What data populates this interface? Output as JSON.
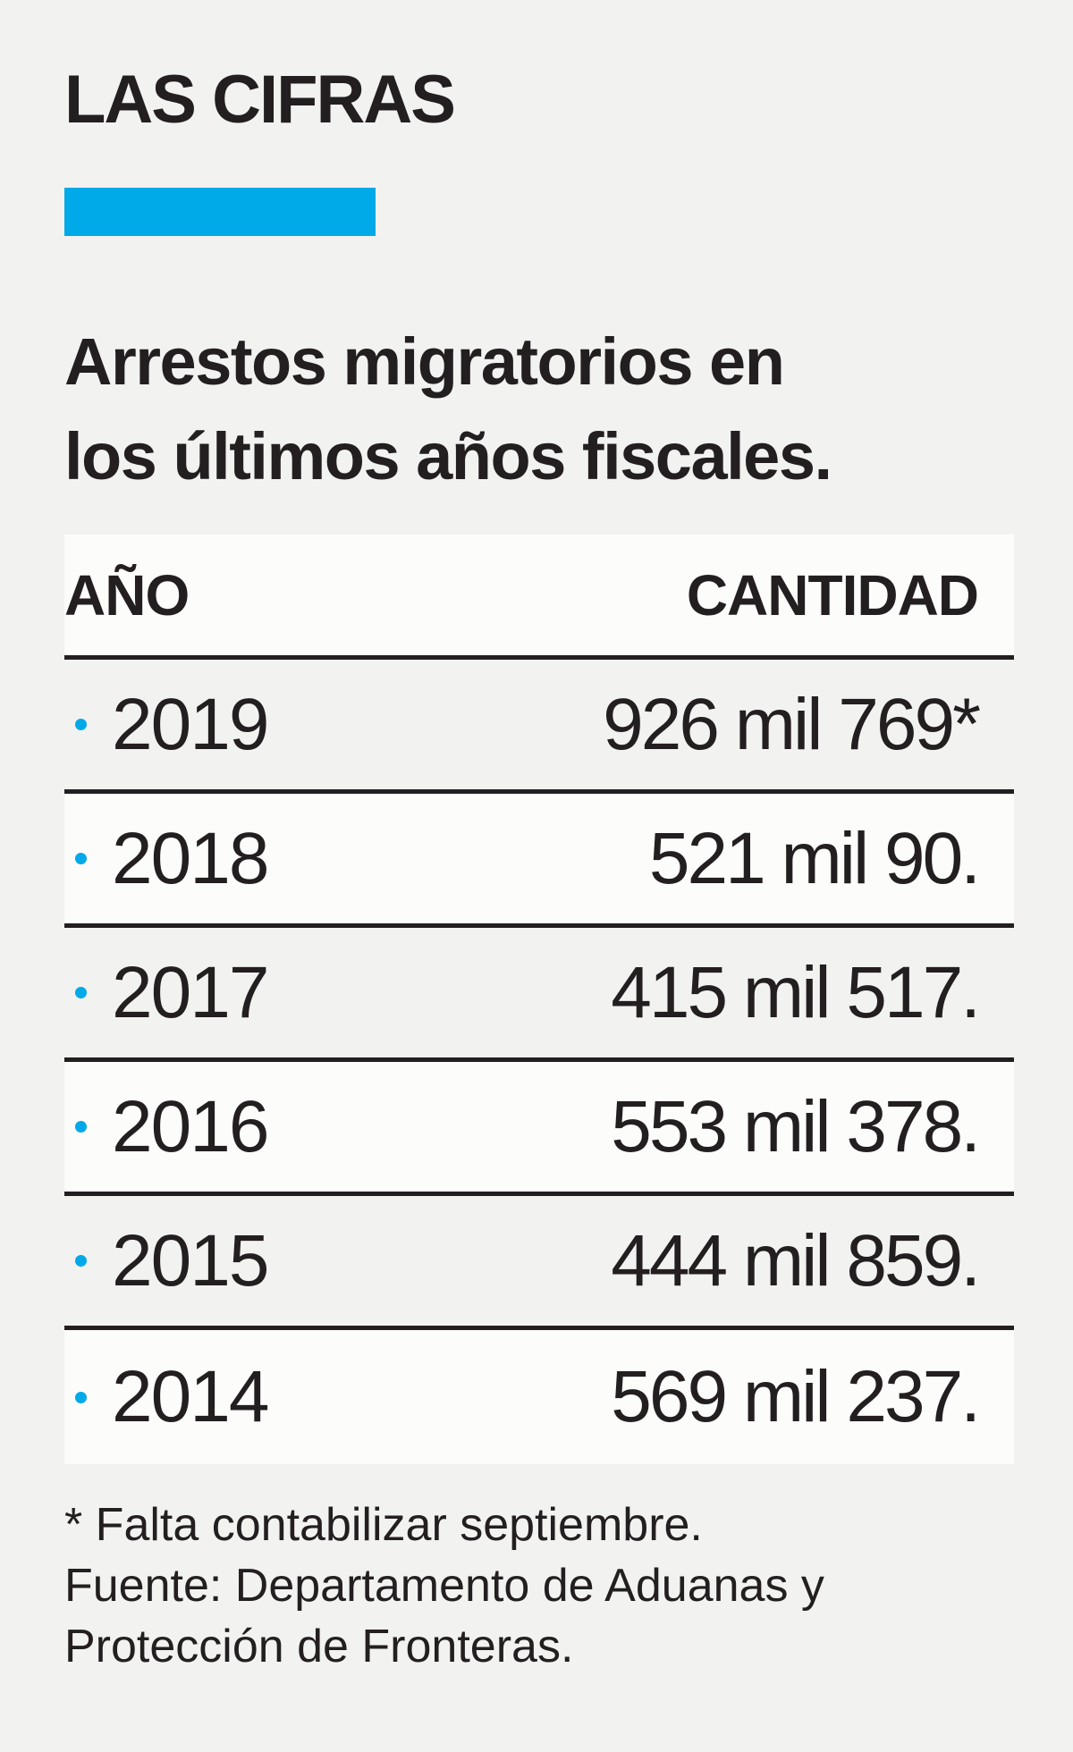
{
  "kicker": "LAS CIFRAS",
  "accent_color": "#00a9e8",
  "headline_line1": "Arrestos migratorios en",
  "headline_line2": "los últimos años fiscales.",
  "chart_data": {
    "type": "table",
    "title": "Arrestos migratorios en los últimos años fiscales.",
    "columns": [
      "AÑO",
      "CANTIDAD"
    ],
    "rows": [
      {
        "year": "2019",
        "amount": "926 mil 769*",
        "value": 926769
      },
      {
        "year": "2018",
        "amount": "521 mil 90.",
        "value": 521090
      },
      {
        "year": "2017",
        "amount": "415 mil 517.",
        "value": 415517
      },
      {
        "year": "2016",
        "amount": "553 mil 378.",
        "value": 553378
      },
      {
        "year": "2015",
        "amount": "444 mil 859.",
        "value": 444859
      },
      {
        "year": "2014",
        "amount": "569 mil 237.",
        "value": 569237
      }
    ]
  },
  "footnote": {
    "line1": "* Falta contabilizar septiembre.",
    "line2": "Fuente: Departamento de Aduanas y",
    "line3": "Protección de Fronteras."
  }
}
